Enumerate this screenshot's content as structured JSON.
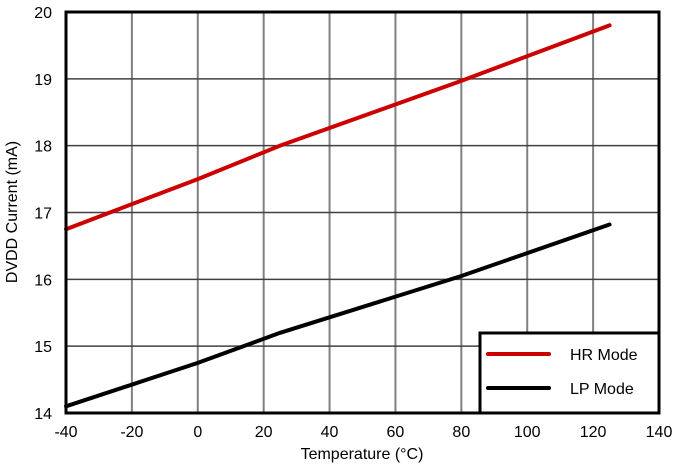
{
  "chart_data": {
    "type": "line",
    "title": "",
    "xlabel": "Temperature (°C)",
    "ylabel": "DVDD Current (mA)",
    "xlim": [
      -40,
      140
    ],
    "ylim": [
      14,
      20
    ],
    "xticks": [
      -40,
      -20,
      0,
      20,
      40,
      60,
      80,
      100,
      120,
      140
    ],
    "yticks": [
      14,
      15,
      16,
      17,
      18,
      19,
      20
    ],
    "grid": true,
    "legend_position": "lower right",
    "series": [
      {
        "name": "HR Mode",
        "color": "#cc0000",
        "x": [
          -40,
          0,
          25,
          80,
          125
        ],
        "y": [
          16.75,
          17.5,
          18.0,
          18.97,
          19.8
        ]
      },
      {
        "name": "LP Mode",
        "color": "#000000",
        "x": [
          -40,
          0,
          25,
          80,
          125
        ],
        "y": [
          14.1,
          14.75,
          15.2,
          16.05,
          16.82
        ]
      }
    ]
  }
}
